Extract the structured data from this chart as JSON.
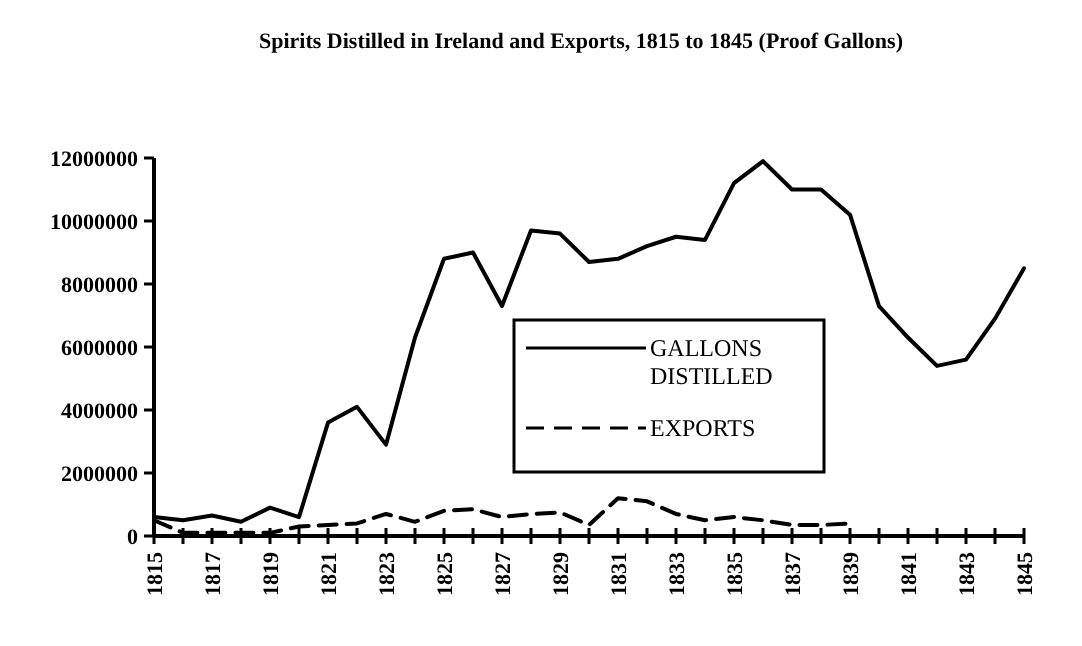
{
  "chart_data": {
    "type": "line",
    "title": "Spirits Distilled in Ireland and Exports, 1815 to 1845 (Proof Gallons)",
    "x": [
      1815,
      1816,
      1817,
      1818,
      1819,
      1820,
      1821,
      1822,
      1823,
      1824,
      1825,
      1826,
      1827,
      1828,
      1829,
      1830,
      1831,
      1832,
      1833,
      1834,
      1835,
      1836,
      1837,
      1838,
      1839,
      1840,
      1841,
      1842,
      1843,
      1844,
      1845
    ],
    "series": [
      {
        "name": "GALLONS DISTILLED",
        "color": "#000000",
        "line_style": "solid",
        "values": [
          600000,
          500000,
          650000,
          450000,
          900000,
          600000,
          3600000,
          4100000,
          2900000,
          6300000,
          8800000,
          9000000,
          7300000,
          9700000,
          9600000,
          8700000,
          8800000,
          9200000,
          9500000,
          9400000,
          11200000,
          11900000,
          11000000,
          11000000,
          10200000,
          7300000,
          6300000,
          5400000,
          5600000,
          6900000,
          8500000
        ]
      },
      {
        "name": "EXPORTS",
        "color": "#000000",
        "line_style": "dashed",
        "values": [
          500000,
          100000,
          100000,
          100000,
          100000,
          300000,
          350000,
          400000,
          700000,
          450000,
          800000,
          850000,
          600000,
          700000,
          750000,
          350000,
          1200000,
          1100000,
          700000,
          500000,
          600000,
          500000,
          350000,
          350000,
          400000,
          null,
          null,
          null,
          null,
          null,
          null
        ]
      }
    ],
    "xlim": [
      1815,
      1845
    ],
    "xticks": [
      {
        "value": 1815,
        "label": "1815"
      },
      {
        "value": 1816,
        "label": null
      },
      {
        "value": 1817,
        "label": "1817"
      },
      {
        "value": 1818,
        "label": null
      },
      {
        "value": 1819,
        "label": "1819"
      },
      {
        "value": 1820,
        "label": null
      },
      {
        "value": 1821,
        "label": "1821"
      },
      {
        "value": 1822,
        "label": null
      },
      {
        "value": 1823,
        "label": "1823"
      },
      {
        "value": 1824,
        "label": null
      },
      {
        "value": 1825,
        "label": "1825"
      },
      {
        "value": 1826,
        "label": null
      },
      {
        "value": 1827,
        "label": "1827"
      },
      {
        "value": 1828,
        "label": null
      },
      {
        "value": 1829,
        "label": "1829"
      },
      {
        "value": 1830,
        "label": null
      },
      {
        "value": 1831,
        "label": "1831"
      },
      {
        "value": 1832,
        "label": null
      },
      {
        "value": 1833,
        "label": "1833"
      },
      {
        "value": 1834,
        "label": null
      },
      {
        "value": 1835,
        "label": "1835"
      },
      {
        "value": 1836,
        "label": null
      },
      {
        "value": 1837,
        "label": "1837"
      },
      {
        "value": 1838,
        "label": null
      },
      {
        "value": 1839,
        "label": "1839"
      },
      {
        "value": 1840,
        "label": null
      },
      {
        "value": 1841,
        "label": "1841"
      },
      {
        "value": 1842,
        "label": null
      },
      {
        "value": 1843,
        "label": "1843"
      },
      {
        "value": 1844,
        "label": null
      },
      {
        "value": 1845,
        "label": "1845"
      }
    ],
    "ylim": [
      0,
      12000000
    ],
    "yticks": [
      0,
      2000000,
      4000000,
      6000000,
      8000000,
      10000000,
      12000000
    ],
    "grid": false,
    "legend": "center",
    "marker": "none"
  }
}
